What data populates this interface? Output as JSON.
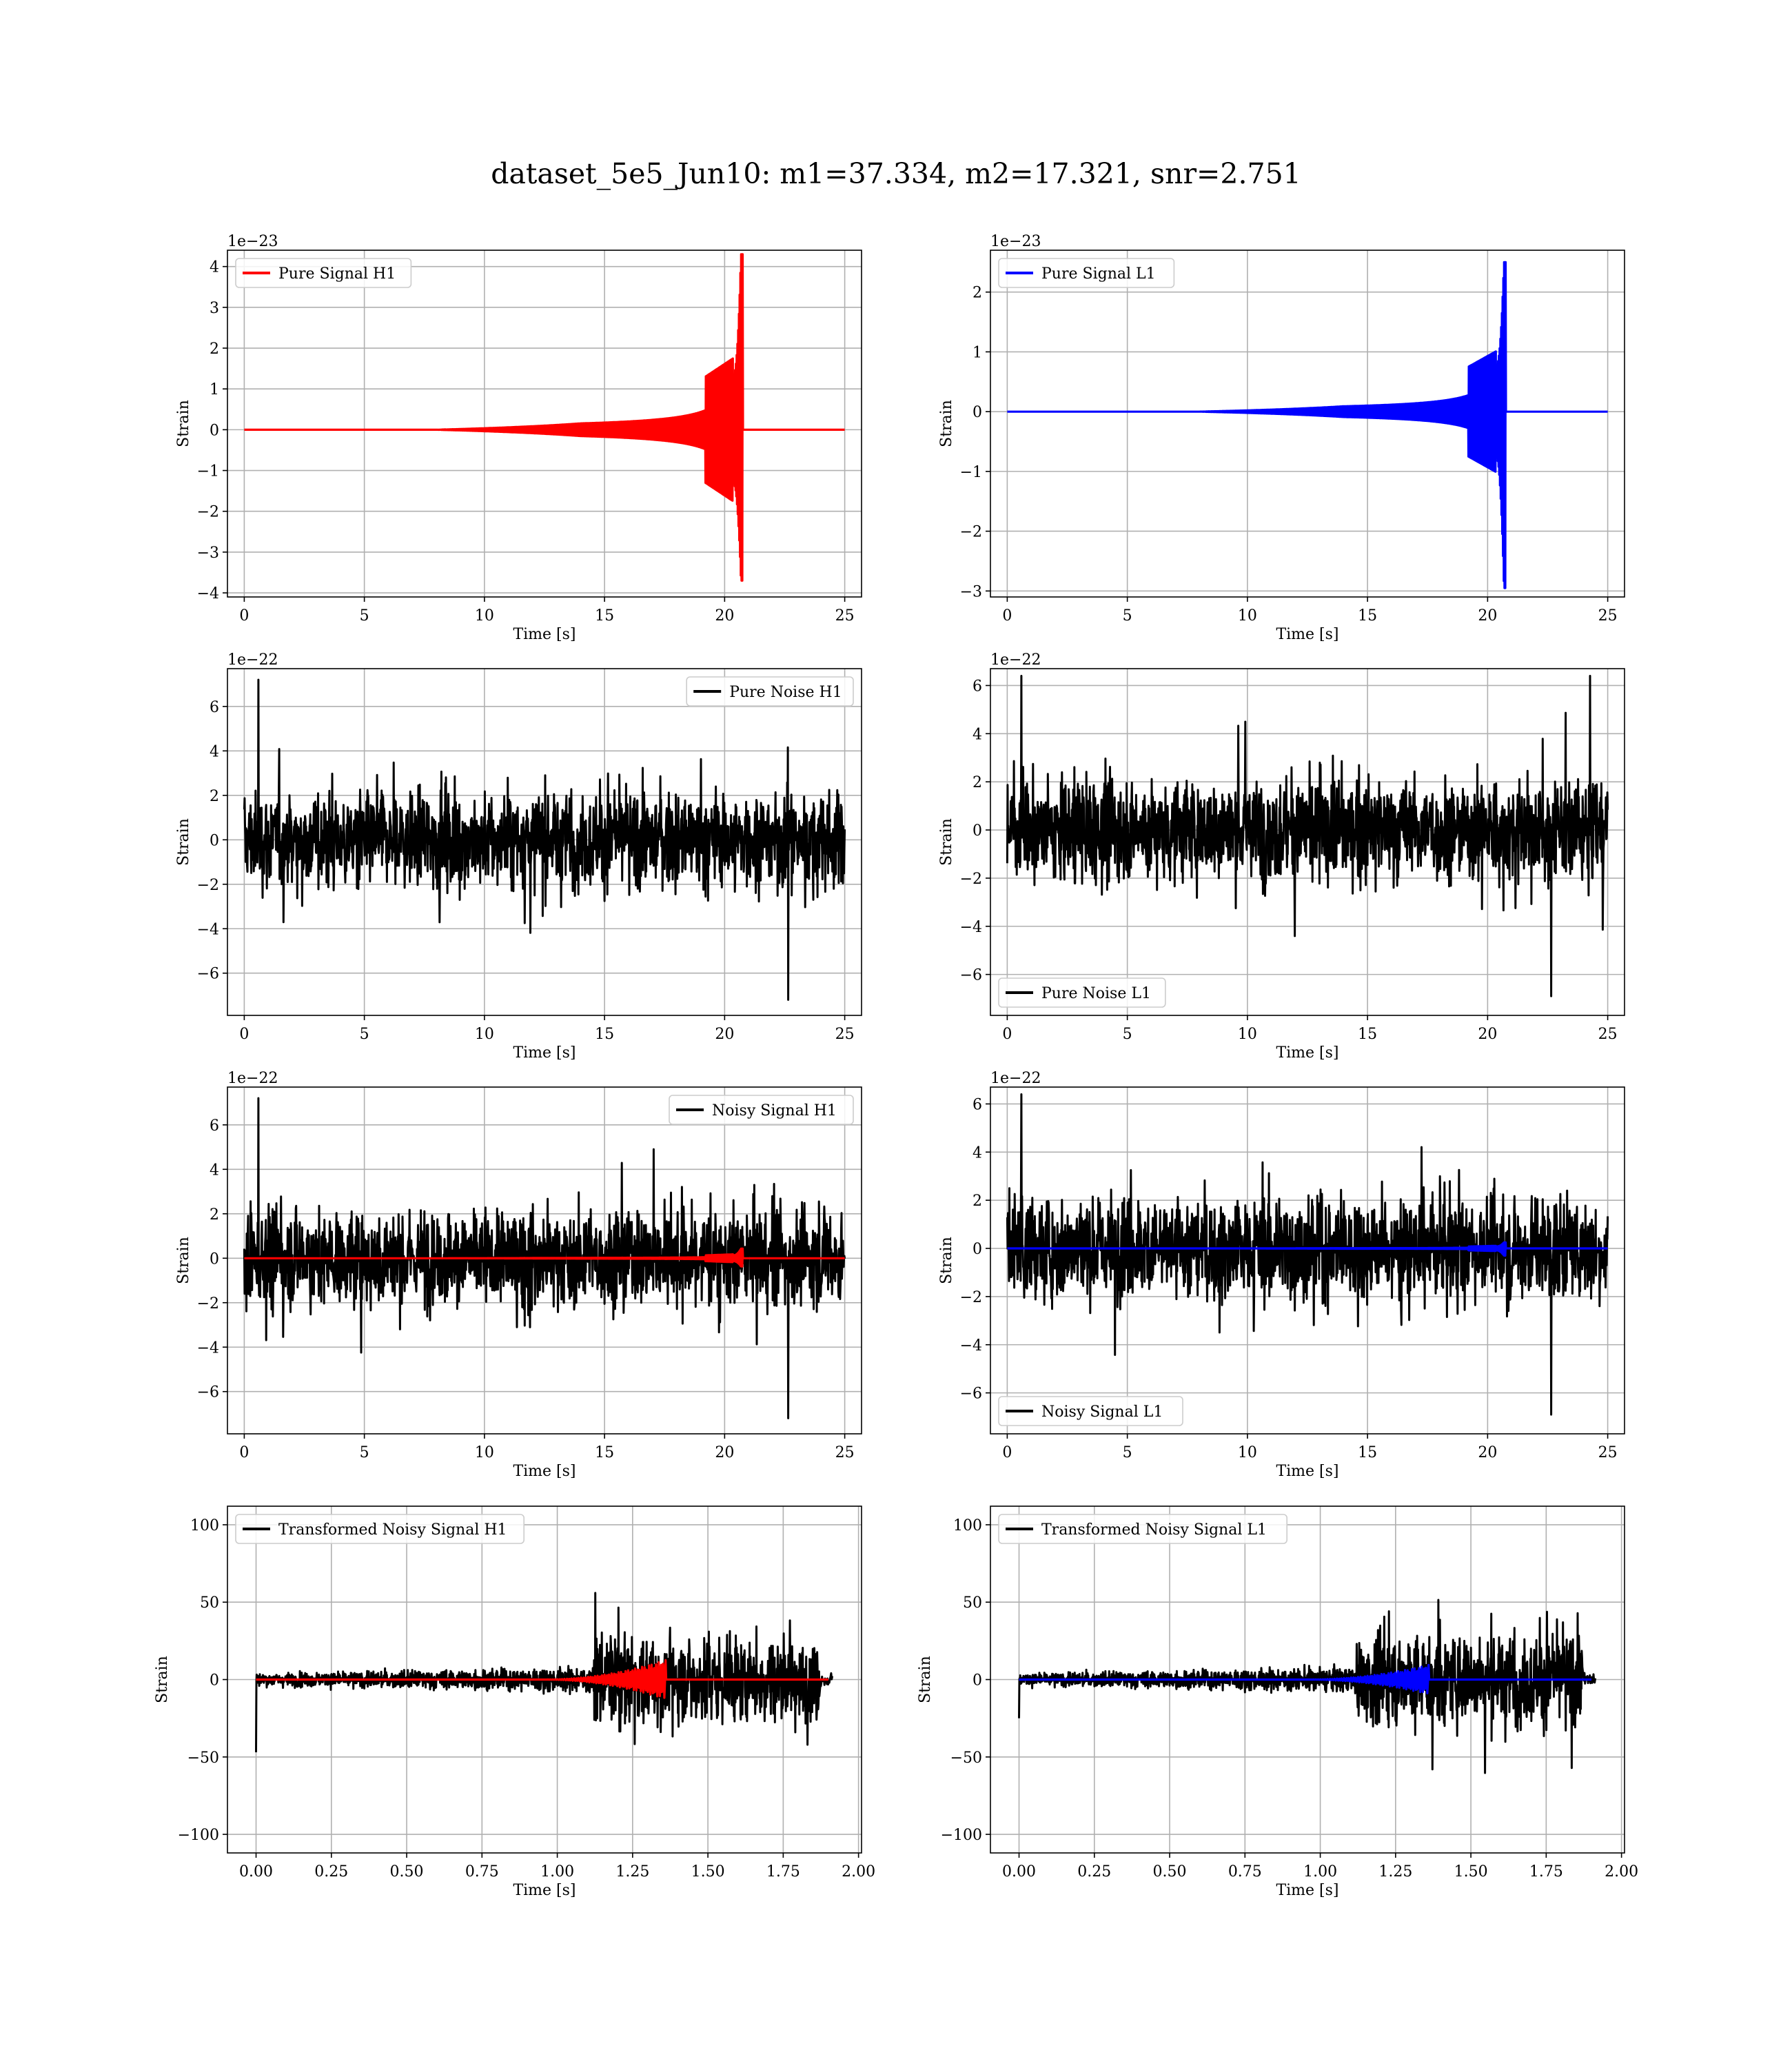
{
  "figure": {
    "title": "dataset_5e5_Jun10: m1=37.334, m2=17.321, snr=2.751"
  },
  "colors": {
    "h1_signal": "#ff0000",
    "l1_signal": "#0000ff",
    "noise": "#000000",
    "grid": "#b0b0b0",
    "axes": "#000000"
  },
  "chart_data": [
    {
      "type": "line",
      "id": "pure-signal-h1",
      "xlabel": "Time [s]",
      "ylabel": "Strain",
      "offset_text": "1e−23",
      "xlim": [
        -0.7,
        25.7
      ],
      "ylim": [
        -4.1,
        4.4
      ],
      "xticks": [
        0,
        5,
        10,
        15,
        20,
        25
      ],
      "yticks": [
        -4,
        -3,
        -2,
        -1,
        0,
        1,
        2,
        3,
        4
      ],
      "grid": true,
      "legend_loc": "upper left",
      "series": [
        {
          "name": "Pure Signal H1",
          "color": "#ff0000",
          "kind": "chirp",
          "t_merger": 20.7,
          "peak_pos": 4.3,
          "peak_neg": -3.7,
          "plateau": 1.3
        }
      ]
    },
    {
      "type": "line",
      "id": "pure-signal-l1",
      "xlabel": "Time [s]",
      "ylabel": "Strain",
      "offset_text": "1e−23",
      "xlim": [
        -0.7,
        25.7
      ],
      "ylim": [
        -3.1,
        2.7
      ],
      "xticks": [
        0,
        5,
        10,
        15,
        20,
        25
      ],
      "yticks": [
        -3,
        -2,
        -1,
        0,
        1,
        2
      ],
      "grid": true,
      "legend_loc": "upper left",
      "series": [
        {
          "name": "Pure Signal L1",
          "color": "#0000ff",
          "kind": "chirp",
          "t_merger": 20.7,
          "peak_pos": 2.5,
          "peak_neg": -2.95,
          "plateau": 0.75
        }
      ]
    },
    {
      "type": "line",
      "id": "pure-noise-h1",
      "xlabel": "Time [s]",
      "ylabel": "Strain",
      "offset_text": "1e−22",
      "xlim": [
        -0.7,
        25.7
      ],
      "ylim": [
        -7.9,
        7.7
      ],
      "xticks": [
        0,
        5,
        10,
        15,
        20,
        25
      ],
      "yticks": [
        -6,
        -4,
        -2,
        0,
        2,
        4,
        6
      ],
      "grid": true,
      "legend_loc": "upper right",
      "series": [
        {
          "name": "Pure Noise H1",
          "color": "#000000",
          "kind": "noise",
          "max": 7.2,
          "min": -7.2
        }
      ]
    },
    {
      "type": "line",
      "id": "pure-noise-l1",
      "xlabel": "Time [s]",
      "ylabel": "Strain",
      "offset_text": "1e−22",
      "xlim": [
        -0.7,
        25.7
      ],
      "ylim": [
        -7.7,
        6.7
      ],
      "xticks": [
        0,
        5,
        10,
        15,
        20,
        25
      ],
      "yticks": [
        -6,
        -4,
        -2,
        0,
        2,
        4,
        6
      ],
      "grid": true,
      "legend_loc": "lower left",
      "series": [
        {
          "name": "Pure Noise L1",
          "color": "#000000",
          "kind": "noise",
          "max": 6.4,
          "min": -6.9
        }
      ]
    },
    {
      "type": "line",
      "id": "noisy-signal-h1",
      "xlabel": "Time [s]",
      "ylabel": "Strain",
      "offset_text": "1e−22",
      "xlim": [
        -0.7,
        25.7
      ],
      "ylim": [
        -7.9,
        7.7
      ],
      "xticks": [
        0,
        5,
        10,
        15,
        20,
        25
      ],
      "yticks": [
        -6,
        -4,
        -2,
        0,
        2,
        4,
        6
      ],
      "grid": true,
      "legend_loc": "upper right",
      "series": [
        {
          "name": "Noisy Signal H1",
          "color": "#000000",
          "kind": "noise",
          "max": 7.2,
          "min": -7.2
        },
        {
          "color": "#ff0000",
          "kind": "chirp",
          "t_merger": 20.7,
          "peak_pos": 0.43,
          "peak_neg": -0.37,
          "plateau": 0.13
        }
      ]
    },
    {
      "type": "line",
      "id": "noisy-signal-l1",
      "xlabel": "Time [s]",
      "ylabel": "Strain",
      "offset_text": "1e−22",
      "xlim": [
        -0.7,
        25.7
      ],
      "ylim": [
        -7.7,
        6.7
      ],
      "xticks": [
        0,
        5,
        10,
        15,
        20,
        25
      ],
      "yticks": [
        -6,
        -4,
        -2,
        0,
        2,
        4,
        6
      ],
      "grid": true,
      "legend_loc": "lower left",
      "series": [
        {
          "name": "Noisy Signal L1",
          "color": "#000000",
          "kind": "noise",
          "max": 6.4,
          "min": -6.9
        },
        {
          "color": "#0000ff",
          "kind": "chirp",
          "t_merger": 20.7,
          "peak_pos": 0.25,
          "peak_neg": -0.3,
          "plateau": 0.08
        }
      ]
    },
    {
      "type": "line",
      "id": "transformed-noisy-signal-h1",
      "xlabel": "Time [s]",
      "ylabel": "Strain",
      "offset_text": "",
      "xlim": [
        -0.095,
        2.01
      ],
      "ylim": [
        -112,
        112
      ],
      "xticks": [
        0.0,
        0.25,
        0.5,
        0.75,
        1.0,
        1.25,
        1.5,
        1.75,
        2.0
      ],
      "xtick_labels": [
        "0.00",
        "0.25",
        "0.50",
        "0.75",
        "1.00",
        "1.25",
        "1.50",
        "1.75",
        "2.00"
      ],
      "yticks": [
        -100,
        -50,
        0,
        50,
        100
      ],
      "grid": true,
      "legend_loc": "upper left",
      "series": [
        {
          "name": "Transformed Noisy Signal H1",
          "color": "#000000",
          "kind": "transformed",
          "t_end": 1.87,
          "t_burst": 1.12,
          "low_amp": 10,
          "high_amp": 92,
          "spike_start": -47
        },
        {
          "color": "#ff0000",
          "kind": "chirp_short",
          "t_start": 0.95,
          "t_merger": 1.35,
          "amp": 12
        }
      ]
    },
    {
      "type": "line",
      "id": "transformed-noisy-signal-l1",
      "xlabel": "Time [s]",
      "ylabel": "Strain",
      "offset_text": "",
      "xlim": [
        -0.095,
        2.01
      ],
      "ylim": [
        -112,
        112
      ],
      "xticks": [
        0.0,
        0.25,
        0.5,
        0.75,
        1.0,
        1.25,
        1.5,
        1.75,
        2.0
      ],
      "xtick_labels": [
        "0.00",
        "0.25",
        "0.50",
        "0.75",
        "1.00",
        "1.25",
        "1.50",
        "1.75",
        "2.00"
      ],
      "yticks": [
        -100,
        -50,
        0,
        50,
        100
      ],
      "grid": true,
      "legend_loc": "upper left",
      "series": [
        {
          "name": "Transformed Noisy Signal L1",
          "color": "#000000",
          "kind": "transformed",
          "t_end": 1.87,
          "t_burst": 1.12,
          "low_amp": 10,
          "high_amp": 95,
          "spike_start": -25
        },
        {
          "color": "#0000ff",
          "kind": "chirp_short",
          "t_start": 0.95,
          "t_merger": 1.35,
          "amp": 9
        }
      ]
    }
  ]
}
